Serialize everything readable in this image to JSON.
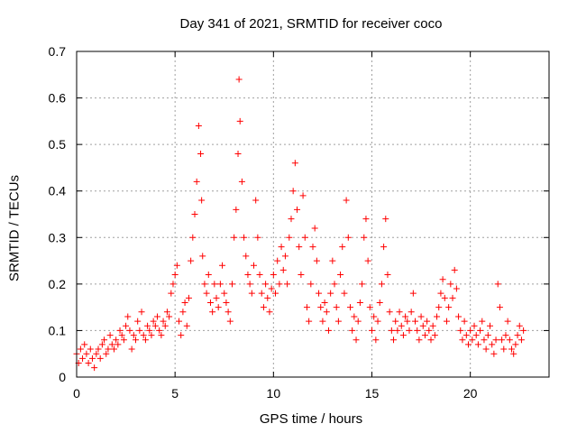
{
  "chart_data": {
    "type": "scatter",
    "title": "Day 341 of 2021, SRMTID for receiver coco",
    "xlabel": "GPS time / hours",
    "ylabel": "SRMTID / TECUs",
    "xlim": [
      0,
      24
    ],
    "ylim": [
      0,
      0.7
    ],
    "xticks": [
      0,
      5,
      10,
      15,
      20
    ],
    "yticks": [
      0,
      0.1,
      0.2,
      0.3,
      0.4,
      0.5,
      0.6,
      0.7
    ],
    "grid": true,
    "marker": "+",
    "color": "#ff0000",
    "series": [
      {
        "name": "SRMTID",
        "points": [
          [
            0.0,
            0.05
          ],
          [
            0.1,
            0.03
          ],
          [
            0.2,
            0.06
          ],
          [
            0.3,
            0.04
          ],
          [
            0.4,
            0.07
          ],
          [
            0.5,
            0.05
          ],
          [
            0.6,
            0.03
          ],
          [
            0.7,
            0.06
          ],
          [
            0.8,
            0.04
          ],
          [
            0.9,
            0.02
          ],
          [
            1.0,
            0.05
          ],
          [
            1.1,
            0.06
          ],
          [
            1.2,
            0.04
          ],
          [
            1.3,
            0.07
          ],
          [
            1.4,
            0.08
          ],
          [
            1.5,
            0.05
          ],
          [
            1.6,
            0.06
          ],
          [
            1.7,
            0.09
          ],
          [
            1.8,
            0.07
          ],
          [
            1.9,
            0.06
          ],
          [
            2.0,
            0.08
          ],
          [
            2.1,
            0.07
          ],
          [
            2.2,
            0.1
          ],
          [
            2.3,
            0.09
          ],
          [
            2.4,
            0.08
          ],
          [
            2.5,
            0.11
          ],
          [
            2.6,
            0.13
          ],
          [
            2.7,
            0.1
          ],
          [
            2.8,
            0.06
          ],
          [
            2.9,
            0.09
          ],
          [
            3.0,
            0.08
          ],
          [
            3.1,
            0.12
          ],
          [
            3.2,
            0.1
          ],
          [
            3.3,
            0.14
          ],
          [
            3.4,
            0.09
          ],
          [
            3.5,
            0.08
          ],
          [
            3.6,
            0.11
          ],
          [
            3.7,
            0.1
          ],
          [
            3.8,
            0.09
          ],
          [
            3.9,
            0.12
          ],
          [
            4.0,
            0.11
          ],
          [
            4.1,
            0.13
          ],
          [
            4.2,
            0.1
          ],
          [
            4.3,
            0.09
          ],
          [
            4.4,
            0.12
          ],
          [
            4.5,
            0.11
          ],
          [
            4.6,
            0.14
          ],
          [
            4.7,
            0.13
          ],
          [
            4.8,
            0.18
          ],
          [
            4.9,
            0.2
          ],
          [
            5.0,
            0.22
          ],
          [
            5.1,
            0.24
          ],
          [
            5.2,
            0.12
          ],
          [
            5.3,
            0.09
          ],
          [
            5.4,
            0.14
          ],
          [
            5.5,
            0.16
          ],
          [
            5.6,
            0.11
          ],
          [
            5.7,
            0.17
          ],
          [
            5.8,
            0.25
          ],
          [
            5.9,
            0.3
          ],
          [
            6.0,
            0.35
          ],
          [
            6.1,
            0.42
          ],
          [
            6.2,
            0.54
          ],
          [
            6.3,
            0.48
          ],
          [
            6.35,
            0.38
          ],
          [
            6.4,
            0.26
          ],
          [
            6.5,
            0.2
          ],
          [
            6.6,
            0.18
          ],
          [
            6.7,
            0.22
          ],
          [
            6.8,
            0.16
          ],
          [
            6.9,
            0.14
          ],
          [
            7.0,
            0.2
          ],
          [
            7.1,
            0.17
          ],
          [
            7.2,
            0.15
          ],
          [
            7.3,
            0.2
          ],
          [
            7.4,
            0.24
          ],
          [
            7.5,
            0.18
          ],
          [
            7.6,
            0.16
          ],
          [
            7.7,
            0.14
          ],
          [
            7.8,
            0.12
          ],
          [
            7.9,
            0.2
          ],
          [
            8.0,
            0.3
          ],
          [
            8.1,
            0.36
          ],
          [
            8.2,
            0.48
          ],
          [
            8.25,
            0.64
          ],
          [
            8.3,
            0.55
          ],
          [
            8.4,
            0.42
          ],
          [
            8.5,
            0.3
          ],
          [
            8.6,
            0.26
          ],
          [
            8.7,
            0.22
          ],
          [
            8.8,
            0.2
          ],
          [
            8.9,
            0.18
          ],
          [
            9.0,
            0.24
          ],
          [
            9.1,
            0.38
          ],
          [
            9.2,
            0.3
          ],
          [
            9.3,
            0.22
          ],
          [
            9.4,
            0.18
          ],
          [
            9.5,
            0.15
          ],
          [
            9.6,
            0.2
          ],
          [
            9.7,
            0.17
          ],
          [
            9.8,
            0.14
          ],
          [
            9.9,
            0.19
          ],
          [
            10.0,
            0.22
          ],
          [
            10.1,
            0.18
          ],
          [
            10.2,
            0.25
          ],
          [
            10.3,
            0.2
          ],
          [
            10.4,
            0.28
          ],
          [
            10.5,
            0.23
          ],
          [
            10.6,
            0.26
          ],
          [
            10.7,
            0.2
          ],
          [
            10.8,
            0.3
          ],
          [
            10.9,
            0.34
          ],
          [
            11.0,
            0.4
          ],
          [
            11.1,
            0.46
          ],
          [
            11.2,
            0.36
          ],
          [
            11.3,
            0.28
          ],
          [
            11.4,
            0.22
          ],
          [
            11.5,
            0.39
          ],
          [
            11.6,
            0.3
          ],
          [
            11.7,
            0.15
          ],
          [
            11.8,
            0.12
          ],
          [
            11.9,
            0.2
          ],
          [
            12.0,
            0.28
          ],
          [
            12.1,
            0.32
          ],
          [
            12.2,
            0.25
          ],
          [
            12.3,
            0.18
          ],
          [
            12.4,
            0.15
          ],
          [
            12.5,
            0.12
          ],
          [
            12.6,
            0.16
          ],
          [
            12.7,
            0.14
          ],
          [
            12.8,
            0.1
          ],
          [
            12.9,
            0.18
          ],
          [
            13.0,
            0.25
          ],
          [
            13.1,
            0.2
          ],
          [
            13.2,
            0.15
          ],
          [
            13.3,
            0.12
          ],
          [
            13.4,
            0.22
          ],
          [
            13.5,
            0.28
          ],
          [
            13.6,
            0.18
          ],
          [
            13.7,
            0.38
          ],
          [
            13.8,
            0.3
          ],
          [
            13.9,
            0.15
          ],
          [
            14.0,
            0.1
          ],
          [
            14.1,
            0.13
          ],
          [
            14.2,
            0.08
          ],
          [
            14.3,
            0.12
          ],
          [
            14.4,
            0.16
          ],
          [
            14.5,
            0.2
          ],
          [
            14.6,
            0.3
          ],
          [
            14.7,
            0.34
          ],
          [
            14.8,
            0.25
          ],
          [
            14.9,
            0.15
          ],
          [
            15.0,
            0.1
          ],
          [
            15.1,
            0.13
          ],
          [
            15.2,
            0.08
          ],
          [
            15.3,
            0.12
          ],
          [
            15.4,
            0.16
          ],
          [
            15.5,
            0.2
          ],
          [
            15.6,
            0.28
          ],
          [
            15.7,
            0.34
          ],
          [
            15.8,
            0.22
          ],
          [
            15.9,
            0.14
          ],
          [
            16.0,
            0.1
          ],
          [
            16.1,
            0.08
          ],
          [
            16.2,
            0.12
          ],
          [
            16.3,
            0.1
          ],
          [
            16.4,
            0.14
          ],
          [
            16.5,
            0.11
          ],
          [
            16.6,
            0.09
          ],
          [
            16.7,
            0.13
          ],
          [
            16.8,
            0.12
          ],
          [
            16.9,
            0.1
          ],
          [
            17.0,
            0.14
          ],
          [
            17.1,
            0.18
          ],
          [
            17.2,
            0.12
          ],
          [
            17.3,
            0.1
          ],
          [
            17.4,
            0.08
          ],
          [
            17.5,
            0.13
          ],
          [
            17.6,
            0.11
          ],
          [
            17.7,
            0.09
          ],
          [
            17.8,
            0.12
          ],
          [
            17.9,
            0.1
          ],
          [
            18.0,
            0.08
          ],
          [
            18.1,
            0.11
          ],
          [
            18.2,
            0.09
          ],
          [
            18.3,
            0.13
          ],
          [
            18.4,
            0.15
          ],
          [
            18.5,
            0.18
          ],
          [
            18.6,
            0.21
          ],
          [
            18.7,
            0.17
          ],
          [
            18.8,
            0.12
          ],
          [
            18.9,
            0.15
          ],
          [
            19.0,
            0.2
          ],
          [
            19.1,
            0.17
          ],
          [
            19.2,
            0.23
          ],
          [
            19.3,
            0.19
          ],
          [
            19.4,
            0.13
          ],
          [
            19.5,
            0.1
          ],
          [
            19.6,
            0.08
          ],
          [
            19.7,
            0.12
          ],
          [
            19.8,
            0.09
          ],
          [
            19.9,
            0.07
          ],
          [
            20.0,
            0.1
          ],
          [
            20.1,
            0.08
          ],
          [
            20.2,
            0.11
          ],
          [
            20.3,
            0.09
          ],
          [
            20.4,
            0.07
          ],
          [
            20.5,
            0.1
          ],
          [
            20.6,
            0.12
          ],
          [
            20.7,
            0.08
          ],
          [
            20.8,
            0.06
          ],
          [
            20.9,
            0.09
          ],
          [
            21.0,
            0.11
          ],
          [
            21.1,
            0.07
          ],
          [
            21.2,
            0.05
          ],
          [
            21.3,
            0.08
          ],
          [
            21.4,
            0.2
          ],
          [
            21.5,
            0.15
          ],
          [
            21.6,
            0.08
          ],
          [
            21.7,
            0.06
          ],
          [
            21.8,
            0.09
          ],
          [
            21.9,
            0.12
          ],
          [
            22.0,
            0.08
          ],
          [
            22.1,
            0.06
          ],
          [
            22.2,
            0.05
          ],
          [
            22.3,
            0.07
          ],
          [
            22.4,
            0.09
          ],
          [
            22.5,
            0.11
          ],
          [
            22.6,
            0.08
          ],
          [
            22.7,
            0.1
          ]
        ]
      }
    ]
  }
}
